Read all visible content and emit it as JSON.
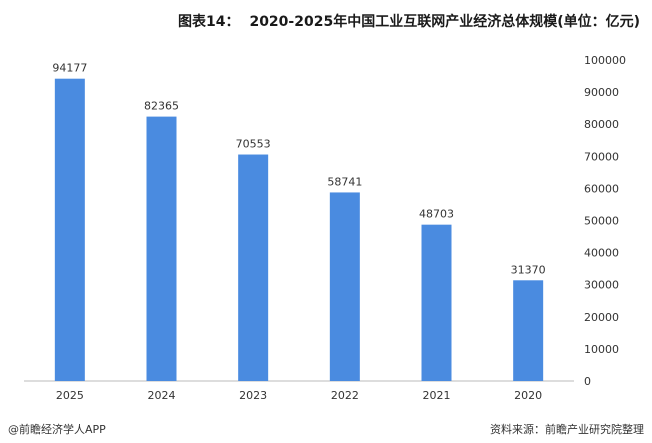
{
  "title": {
    "label": "图表14：",
    "text": "2020-2025年中国工业互联网产业经济总体规模(单位：亿元)"
  },
  "footer": {
    "source": "资料来源：前瞻产业研究院整理",
    "brand": "@前瞻经济学人APP"
  },
  "colors": {
    "bar": "#4a8be0",
    "axis": "#bbbbbb",
    "text": "#333333"
  },
  "chart_data": {
    "type": "bar",
    "categories": [
      "2025",
      "2024",
      "2023",
      "2022",
      "2021",
      "2020"
    ],
    "values": [
      94177,
      82365,
      70553,
      58741,
      48703,
      31370
    ],
    "data_labels": [
      "94177",
      "82365",
      "70553",
      "58741",
      "48703",
      "31370"
    ],
    "ylim": [
      0,
      100000
    ],
    "y_ticks": [
      "0",
      "10000",
      "20000",
      "30000",
      "40000",
      "50000",
      "60000",
      "70000",
      "80000",
      "90000",
      "100000"
    ],
    "y_axis_position": "right",
    "grid": false,
    "legend": "none"
  }
}
